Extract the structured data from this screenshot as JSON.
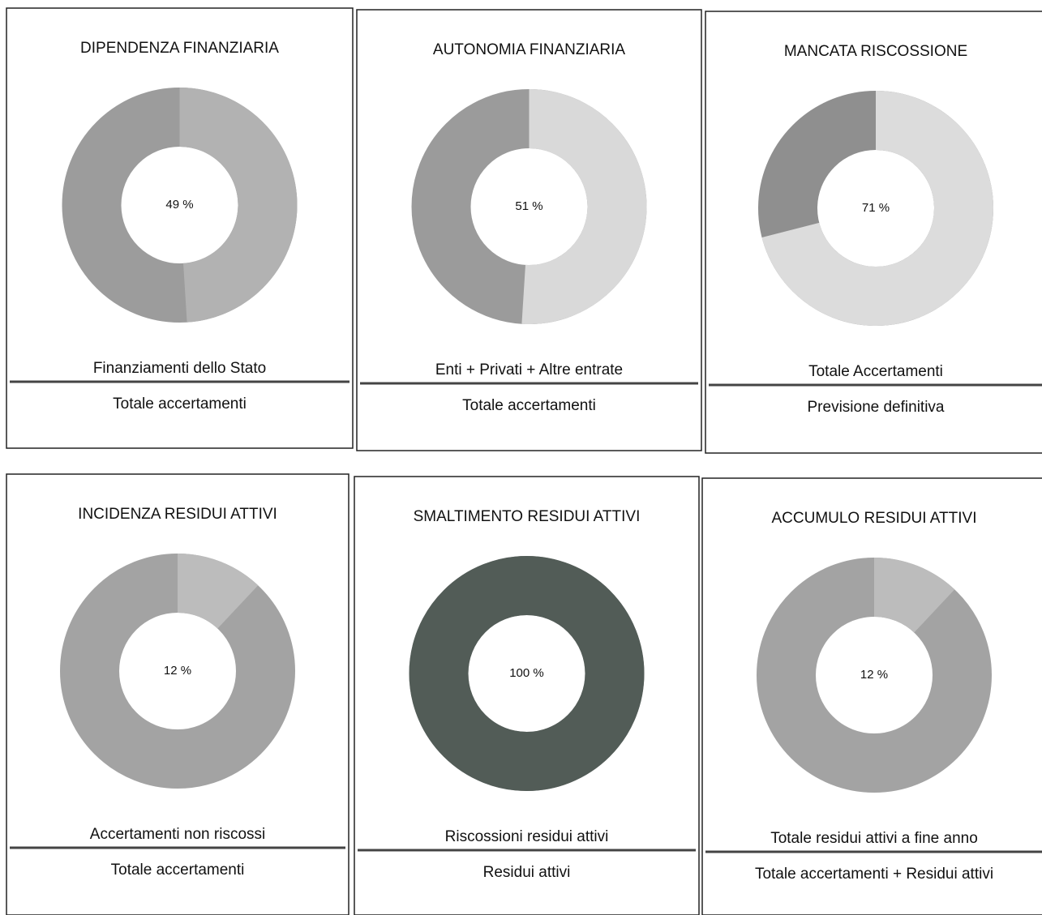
{
  "chart_data": [
    {
      "type": "donut",
      "title": "DIPENDENZA FINANZIARIA",
      "values": [
        49
      ],
      "value_labels": [
        "49 %"
      ],
      "colors": [
        "#b2b2b2",
        "#9c9c9c"
      ],
      "numerator": "Finanziamenti dello Stato",
      "denominator": "Totale accertamenti"
    },
    {
      "type": "donut",
      "title": "AUTONOMIA FINANZIARIA",
      "values": [
        51
      ],
      "value_labels": [
        "51 %"
      ],
      "colors": [
        "#d9d9d9",
        "#9b9b9b"
      ],
      "numerator": "Enti + Privati + Altre entrate",
      "denominator": "Totale accertamenti"
    },
    {
      "type": "donut",
      "title": "MANCATA RISCOSSIONE",
      "values": [
        71
      ],
      "value_labels": [
        "71 %"
      ],
      "colors": [
        "#dcdcdc",
        "#8f8f8f"
      ],
      "numerator": "Totale Accertamenti",
      "denominator": "Previsione definitiva"
    },
    {
      "type": "donut",
      "title": "INCIDENZA RESIDUI ATTIVI",
      "values": [
        12
      ],
      "value_labels": [
        "12 %"
      ],
      "colors": [
        "#bcbcbc",
        "#a3a3a3"
      ],
      "numerator": "Accertamenti non riscossi",
      "denominator": "Totale accertamenti"
    },
    {
      "type": "donut",
      "title": "SMALTIMENTO RESIDUI ATTIVI",
      "values": [
        100
      ],
      "value_labels": [
        "100 %"
      ],
      "colors": [
        "#525c57",
        "#9c9c9c"
      ],
      "numerator": "Riscossioni residui attivi",
      "denominator": "Residui attivi"
    },
    {
      "type": "donut",
      "title": "ACCUMULO RESIDUI ATTIVI",
      "values": [
        12
      ],
      "value_labels": [
        "12 %"
      ],
      "colors": [
        "#bcbcbc",
        "#a3a3a3"
      ],
      "numerator": "Totale residui attivi a fine anno",
      "denominator": "Totale accertamenti + Residui attivi"
    }
  ]
}
